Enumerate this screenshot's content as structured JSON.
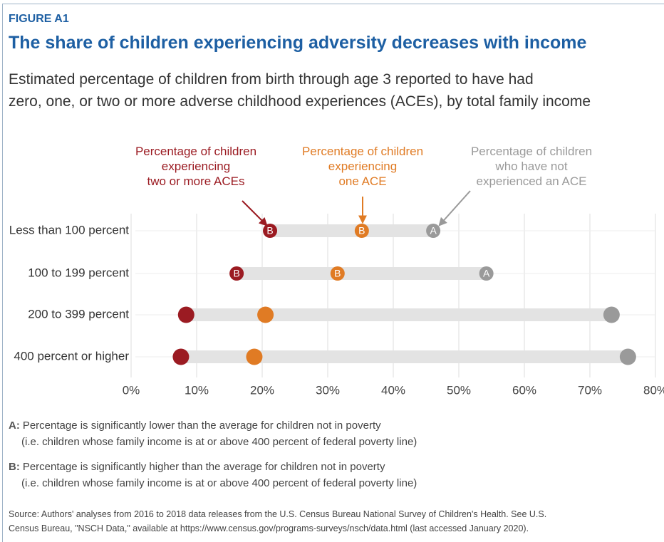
{
  "header": {
    "figure": "FIGURE A1",
    "title": "The share of children experiencing adversity decreases with income",
    "subtitle": "Estimated percentage of children from birth through age 3 reported to have had\nzero, one, or two or more adverse childhood experiences (ACEs), by total family income"
  },
  "chart_data": {
    "type": "dot",
    "categories": [
      "Less than 100 percent",
      "100 to 199 percent",
      "200 to 399 percent",
      "400 percent or higher"
    ],
    "series": [
      {
        "name": "Percentage of children\nexperiencing\ntwo or more ACEs",
        "color": "#9b1b22",
        "values": [
          21.2,
          16.1,
          8.4,
          7.6
        ],
        "marker_labels": [
          "B",
          "B",
          null,
          null
        ]
      },
      {
        "name": "Percentage of children\nexperiencing\none ACE",
        "color": "#e07b24",
        "values": [
          35.2,
          31.5,
          20.5,
          18.8
        ],
        "marker_labels": [
          "B",
          "B",
          null,
          null
        ]
      },
      {
        "name": "Percentage of children\nwho have not\nexperienced an ACE",
        "color": "#9a9a9a",
        "values": [
          46.1,
          54.2,
          73.3,
          75.8
        ],
        "marker_labels": [
          "A",
          "A",
          null,
          null
        ]
      }
    ],
    "xlim": [
      0,
      80
    ],
    "xticks": [
      {
        "value": 0,
        "label": "0%"
      },
      {
        "value": 10,
        "label": "10%"
      },
      {
        "value": 20,
        "label": "20%"
      },
      {
        "value": 30,
        "label": "30%"
      },
      {
        "value": 40,
        "label": "40%"
      },
      {
        "value": 50,
        "label": "50%"
      },
      {
        "value": 60,
        "label": "60%"
      },
      {
        "value": 70,
        "label": "70%"
      },
      {
        "value": 80,
        "label": "80%"
      }
    ],
    "grid": true
  },
  "notes": [
    {
      "key": "A:",
      "lines": [
        "Percentage is significantly lower than the average for children not in poverty",
        "(i.e. children whose family income is at or above 400 percent of federal poverty line)"
      ]
    },
    {
      "key": "B:",
      "lines": [
        "Percentage is significantly higher than the average for children not in poverty",
        "(i.e. children whose family income is at or above 400 percent of federal poverty line)"
      ]
    }
  ],
  "source": "Source: Authors' analyses from 2016 to 2018 data releases from the U.S. Census Bureau National Survey of Children's Health. See U.S.\nCensus Bureau, \"NSCH Data,\" available at https://www.census.gov/programs-surveys/nsch/data.html (last accessed January 2020)."
}
